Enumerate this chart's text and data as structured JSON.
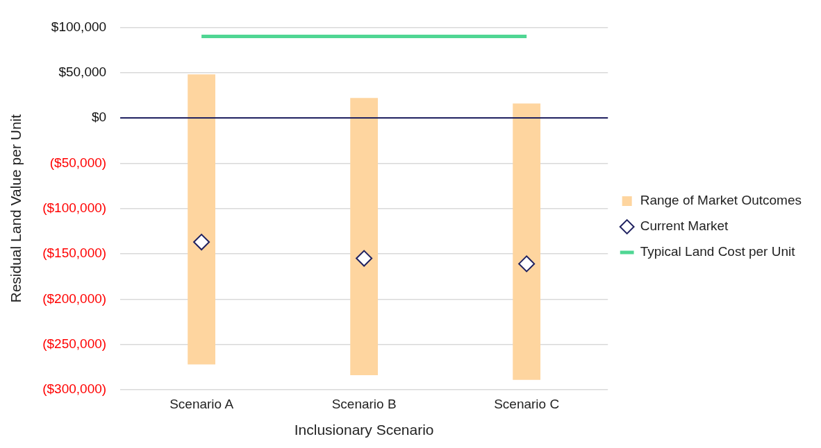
{
  "chart_data": {
    "type": "bar",
    "xlabel": "Inclusionary Scenario",
    "ylabel": "Residual Land Value per Unit",
    "categories": [
      "Scenario A",
      "Scenario B",
      "Scenario C"
    ],
    "series": [
      {
        "name": "Range of Market Outcomes",
        "color": "#fed59f",
        "values": [
          320000,
          306000,
          305000
        ],
        "base": [
          -272000,
          -284000,
          -289000
        ]
      },
      {
        "name": "Current Market",
        "type": "scatter",
        "color": "#1f2160",
        "marker": "diamond",
        "values": [
          -137000,
          -155000,
          -161000
        ]
      },
      {
        "name": "Typical Land Cost per Unit",
        "type": "line",
        "color": "#4fd693",
        "marker": "none",
        "values": [
          90000,
          90000,
          90000
        ]
      }
    ],
    "ylim": [
      -300000,
      100000
    ],
    "yticks": [
      {
        "value": -300000,
        "label": "($300,000)"
      },
      {
        "value": -250000,
        "label": "($250,000)"
      },
      {
        "value": -200000,
        "label": "($200,000)"
      },
      {
        "value": -150000,
        "label": "($150,000)"
      },
      {
        "value": -100000,
        "label": "($100,000)"
      },
      {
        "value": -50000,
        "label": "($50,000)"
      },
      {
        "value": 0,
        "label": "$0"
      },
      {
        "value": 50000,
        "label": "$50,000"
      },
      {
        "value": 100000,
        "label": "$100,000"
      }
    ],
    "ref_lines": [
      {
        "axis": "y",
        "value": 0,
        "color": "#1f2160"
      }
    ],
    "grid": "y",
    "legend": "right"
  }
}
